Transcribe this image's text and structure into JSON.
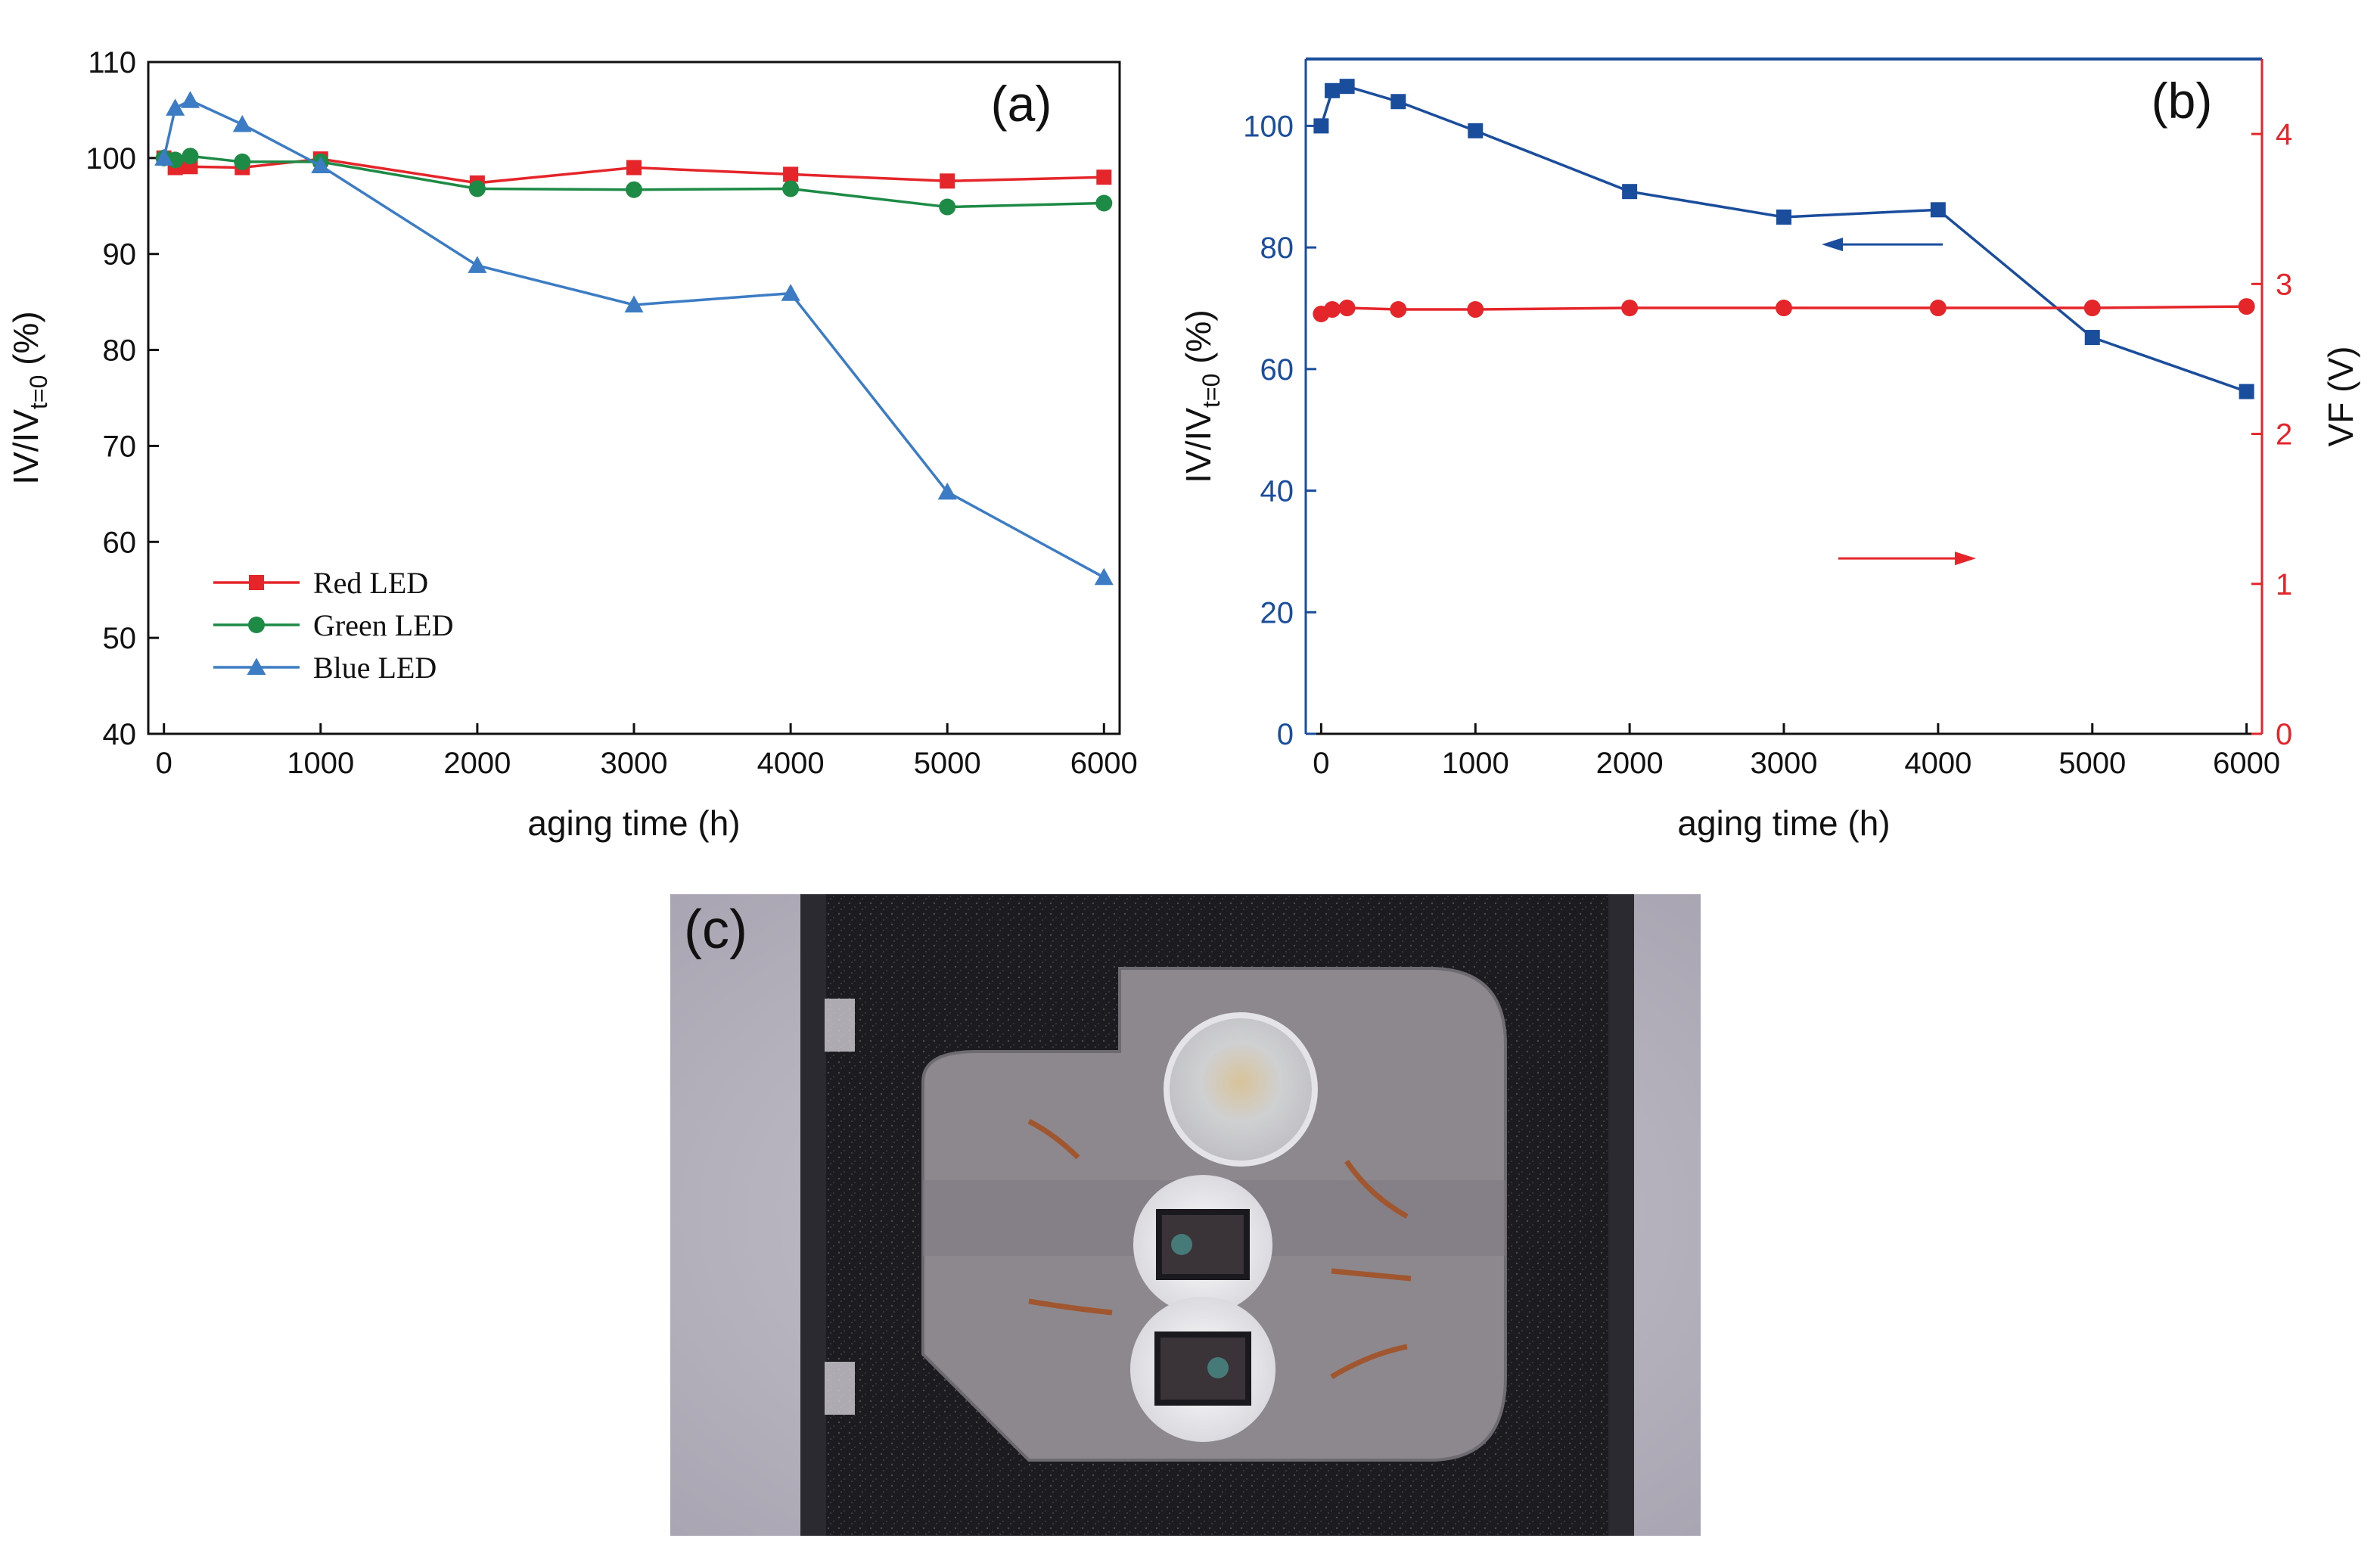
{
  "colors": {
    "red": "#e4262a",
    "green": "#1d8a45",
    "blue": "#3b7cc4",
    "navy": "#1a4d9c",
    "axis": "#111111"
  },
  "chart_data": [
    {
      "type": "line",
      "panel_label": "(a)",
      "xlabel": "aging time (h)",
      "ylabel_main": "IV/IV",
      "ylabel_sub": "t=0",
      "ylabel_unit": " (%)",
      "xlim": [
        -100,
        6100
      ],
      "ylim": [
        40,
        110
      ],
      "xticks": [
        0,
        1000,
        2000,
        3000,
        4000,
        5000,
        6000
      ],
      "yticks": [
        40,
        50,
        60,
        70,
        80,
        90,
        100,
        110
      ],
      "legend_position": "bottom-left",
      "series": [
        {
          "name": "Red LED",
          "marker": "square",
          "color": "#e4262a",
          "x": [
            0,
            72,
            168,
            500,
            1000,
            2000,
            3000,
            4000,
            5000,
            6000
          ],
          "y": [
            100,
            99.0,
            99.1,
            99.0,
            99.9,
            97.4,
            99.0,
            98.3,
            97.6,
            98.0
          ]
        },
        {
          "name": "Green LED",
          "marker": "circle",
          "color": "#1d8a45",
          "x": [
            0,
            72,
            168,
            500,
            1000,
            2000,
            3000,
            4000,
            5000,
            6000
          ],
          "y": [
            100,
            99.8,
            100.2,
            99.6,
            99.6,
            96.8,
            96.7,
            96.8,
            94.9,
            95.3
          ]
        },
        {
          "name": "Blue LED",
          "marker": "triangle",
          "color": "#3b7cc4",
          "x": [
            0,
            72,
            168,
            500,
            1000,
            2000,
            3000,
            4000,
            5000,
            6000
          ],
          "y": [
            100,
            105.2,
            106.0,
            103.5,
            99.2,
            88.8,
            84.7,
            85.9,
            65.2,
            56.3
          ]
        }
      ]
    },
    {
      "type": "line",
      "panel_label": "(b)",
      "xlabel": "aging time (h)",
      "ylabel_main": "IV/IV",
      "ylabel_sub": "t=0",
      "ylabel_unit": " (%)",
      "ylabel_right": "VF (V)",
      "xlim": [
        -100,
        6100
      ],
      "ylim": [
        0,
        111
      ],
      "ylim_right": [
        0,
        4.5
      ],
      "xticks": [
        0,
        1000,
        2000,
        3000,
        4000,
        5000,
        6000
      ],
      "yticks": [
        0,
        20,
        40,
        60,
        80,
        100
      ],
      "yticks_right": [
        0,
        1,
        2,
        3,
        4
      ],
      "series": [
        {
          "name": "IV/IV(t=0)",
          "axis": "left",
          "marker": "square",
          "color": "#1a4d9c",
          "x": [
            0,
            72,
            168,
            500,
            1000,
            2000,
            3000,
            4000,
            5000,
            6000
          ],
          "y": [
            100.0,
            105.8,
            106.5,
            104.0,
            99.2,
            89.2,
            85.0,
            86.2,
            65.2,
            56.3
          ]
        },
        {
          "name": "VF",
          "axis": "right",
          "marker": "circle",
          "color": "#e4262a",
          "x": [
            0,
            72,
            168,
            500,
            1000,
            2000,
            3000,
            4000,
            5000,
            6000
          ],
          "y": [
            2.8,
            2.83,
            2.84,
            2.83,
            2.83,
            2.84,
            2.84,
            2.84,
            2.84,
            2.85
          ]
        }
      ],
      "annotations": [
        {
          "type": "arrow",
          "direction": "left",
          "points_to": "left axis",
          "color": "#1a4d9c"
        },
        {
          "type": "arrow",
          "direction": "right",
          "points_to": "right axis",
          "color": "#e4262a"
        }
      ]
    }
  ],
  "photo": {
    "panel_label": "(c)",
    "subject": "LED package top view"
  }
}
